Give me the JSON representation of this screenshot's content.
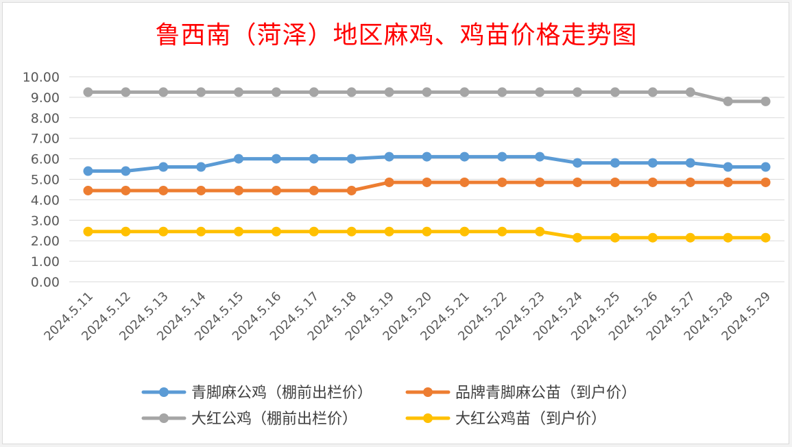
{
  "chart_data": {
    "type": "line",
    "title": "鲁西南（菏泽）地区麻鸡、鸡苗价格走势图",
    "xlabel": "",
    "ylabel": "",
    "ylim": [
      0,
      10
    ],
    "yticks": [
      "0.00",
      "1.00",
      "2.00",
      "3.00",
      "4.00",
      "5.00",
      "6.00",
      "7.00",
      "8.00",
      "9.00",
      "10.00"
    ],
    "grid": true,
    "legend_position": "bottom",
    "categories": [
      "2024.5.11",
      "2024.5.12",
      "2024.5.13",
      "2024.5.14",
      "2024.5.15",
      "2024.5.16",
      "2024.5.17",
      "2024.5.18",
      "2024.5.19",
      "2024.5.20",
      "2024.5.21",
      "2024.5.22",
      "2024.5.23",
      "2024.5.24",
      "2024.5.25",
      "2024.5.26",
      "2024.5.27",
      "2024.5.28",
      "2024.5.29"
    ],
    "series": [
      {
        "name": "青脚麻公鸡（棚前出栏价）",
        "color": "#5b9bd5",
        "values": [
          5.4,
          5.4,
          5.6,
          5.6,
          6.0,
          6.0,
          6.0,
          6.0,
          6.1,
          6.1,
          6.1,
          6.1,
          6.1,
          5.8,
          5.8,
          5.8,
          5.8,
          5.6,
          5.6
        ]
      },
      {
        "name": "品牌青脚麻公苗（到户价）",
        "color": "#ed7d31",
        "values": [
          4.45,
          4.45,
          4.45,
          4.45,
          4.45,
          4.45,
          4.45,
          4.45,
          4.85,
          4.85,
          4.85,
          4.85,
          4.85,
          4.85,
          4.85,
          4.85,
          4.85,
          4.85,
          4.85
        ]
      },
      {
        "name": "大红公鸡（棚前出栏价）",
        "color": "#a5a5a5",
        "values": [
          9.25,
          9.25,
          9.25,
          9.25,
          9.25,
          9.25,
          9.25,
          9.25,
          9.25,
          9.25,
          9.25,
          9.25,
          9.25,
          9.25,
          9.25,
          9.25,
          9.25,
          8.8,
          8.8
        ]
      },
      {
        "name": "大红公鸡苗（到户价）",
        "color": "#ffc000",
        "values": [
          2.45,
          2.45,
          2.45,
          2.45,
          2.45,
          2.45,
          2.45,
          2.45,
          2.45,
          2.45,
          2.45,
          2.45,
          2.45,
          2.15,
          2.15,
          2.15,
          2.15,
          2.15,
          2.15
        ]
      }
    ]
  }
}
